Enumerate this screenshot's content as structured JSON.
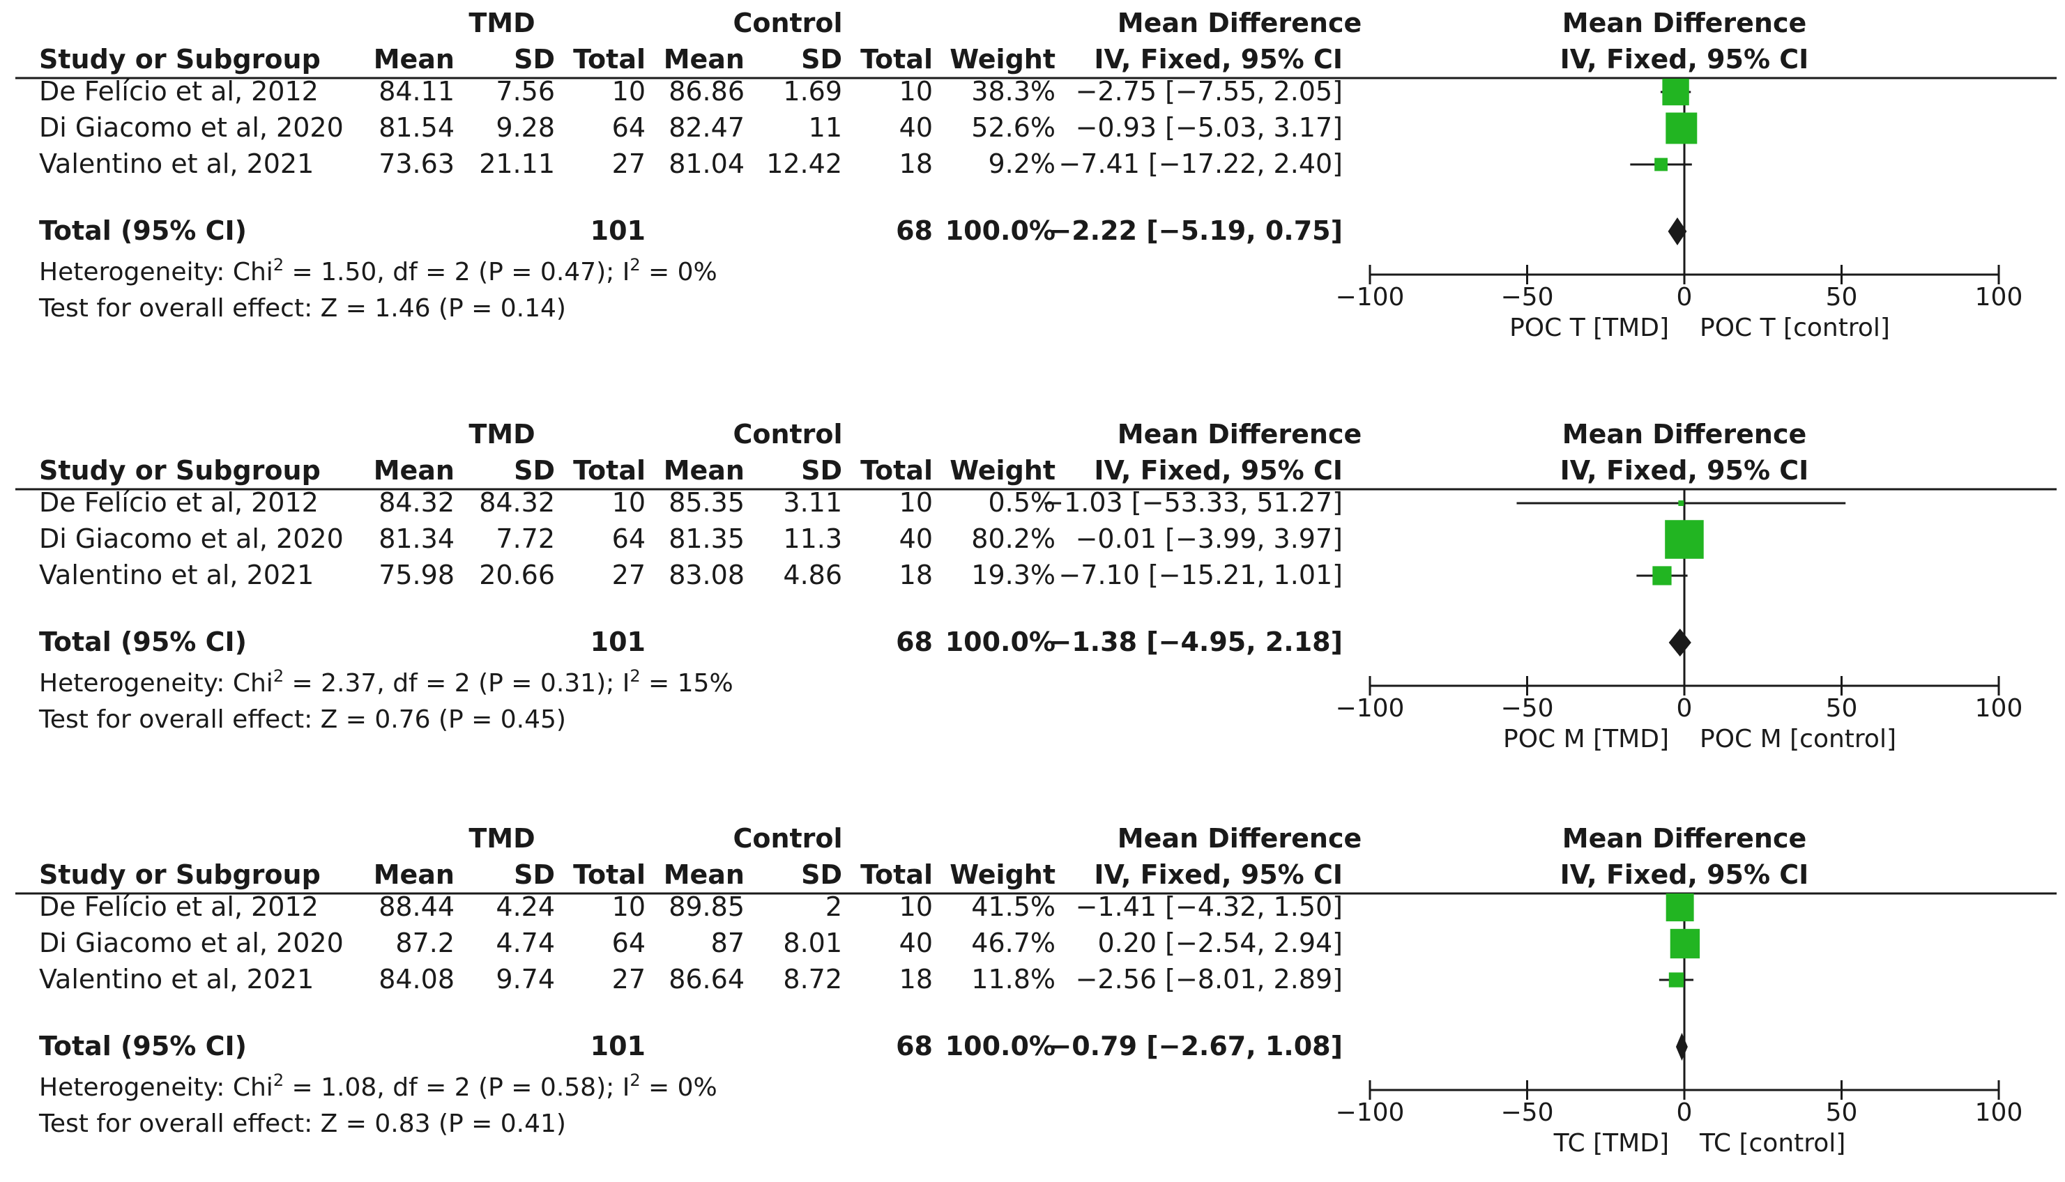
{
  "chart_data": [
    {
      "type": "forest",
      "title": "",
      "headers": {
        "group1": "TMD",
        "group2": "Control",
        "study": "Study or Subgroup",
        "mean": "Mean",
        "sd": "SD",
        "total": "Total",
        "weight": "Weight",
        "md_title": "Mean Difference",
        "md_sub": "IV, Fixed, 95% CI",
        "plot_title": "Mean Difference",
        "plot_sub": "IV, Fixed, 95% CI"
      },
      "studies": [
        {
          "name": "De Felício et al, 2012",
          "mean1": "84.11",
          "sd1": "7.56",
          "n1": "10",
          "mean2": "86.86",
          "sd2": "1.69",
          "n2": "10",
          "weight_label": "38.3%",
          "weight": 38.3,
          "ci_label": "−2.75 [−7.55, 2.05]",
          "md": -2.75,
          "lo": -7.55,
          "hi": 2.05
        },
        {
          "name": "Di Giacomo et al, 2020",
          "mean1": "81.54",
          "sd1": "9.28",
          "n1": "64",
          "mean2": "82.47",
          "sd2": "11",
          "n2": "40",
          "weight_label": "52.6%",
          "weight": 52.6,
          "ci_label": "−0.93 [−5.03, 3.17]",
          "md": -0.93,
          "lo": -5.03,
          "hi": 3.17
        },
        {
          "name": "Valentino et al, 2021",
          "mean1": "73.63",
          "sd1": "21.11",
          "n1": "27",
          "mean2": "81.04",
          "sd2": "12.42",
          "n2": "18",
          "weight_label": "9.2%",
          "weight": 9.2,
          "ci_label": "−7.41 [−17.22, 2.40]",
          "md": -7.41,
          "lo": -17.22,
          "hi": 2.4
        }
      ],
      "total": {
        "label": "Total (95% CI)",
        "n1": "101",
        "n2": "68",
        "weight_label": "100.0%",
        "ci_label": "−2.22 [−5.19, 0.75]",
        "md": -2.22,
        "lo": -5.19,
        "hi": 0.75
      },
      "heterogeneity": {
        "prefix": "Heterogeneity: Chi",
        "sup": "2",
        "middle": " = 1.50, df = 2 (P = 0.47); I",
        "sup2": "2",
        "suffix": " = 0%"
      },
      "overall_effect": "Test for overall effect: Z = 1.46 (P = 0.14)",
      "axis": {
        "ticks": [
          -100,
          -50,
          0,
          50,
          100
        ],
        "tick_labels": [
          "−100",
          "−50",
          "0",
          "50",
          "100"
        ],
        "range": [
          -100,
          100
        ]
      },
      "favours": {
        "left": "POC T [TMD]",
        "right": "POC T [control]"
      }
    },
    {
      "type": "forest",
      "title": "",
      "headers": {
        "group1": "TMD",
        "group2": "Control",
        "study": "Study or Subgroup",
        "mean": "Mean",
        "sd": "SD",
        "total": "Total",
        "weight": "Weight",
        "md_title": "Mean Difference",
        "md_sub": "IV, Fixed, 95% CI",
        "plot_title": "Mean Difference",
        "plot_sub": "IV, Fixed, 95% CI"
      },
      "studies": [
        {
          "name": "De Felício et al, 2012",
          "mean1": "84.32",
          "sd1": "84.32",
          "n1": "10",
          "mean2": "85.35",
          "sd2": "3.11",
          "n2": "10",
          "weight_label": "0.5%",
          "weight": 0.5,
          "ci_label": "−1.03 [−53.33, 51.27]",
          "md": -1.03,
          "lo": -53.33,
          "hi": 51.27
        },
        {
          "name": "Di Giacomo et al, 2020",
          "mean1": "81.34",
          "sd1": "7.72",
          "n1": "64",
          "mean2": "81.35",
          "sd2": "11.3",
          "n2": "40",
          "weight_label": "80.2%",
          "weight": 80.2,
          "ci_label": "−0.01 [−3.99, 3.97]",
          "md": -0.01,
          "lo": -3.99,
          "hi": 3.97
        },
        {
          "name": "Valentino et al, 2021",
          "mean1": "75.98",
          "sd1": "20.66",
          "n1": "27",
          "mean2": "83.08",
          "sd2": "4.86",
          "n2": "18",
          "weight_label": "19.3%",
          "weight": 19.3,
          "ci_label": "−7.10 [−15.21, 1.01]",
          "md": -7.1,
          "lo": -15.21,
          "hi": 1.01
        }
      ],
      "total": {
        "label": "Total (95% CI)",
        "n1": "101",
        "n2": "68",
        "weight_label": "100.0%",
        "ci_label": "−1.38 [−4.95, 2.18]",
        "md": -1.38,
        "lo": -4.95,
        "hi": 2.18
      },
      "heterogeneity": {
        "prefix": "Heterogeneity: Chi",
        "sup": "2",
        "middle": " = 2.37, df = 2 (P = 0.31); I",
        "sup2": "2",
        "suffix": " = 15%"
      },
      "overall_effect": "Test for overall effect: Z = 0.76 (P = 0.45)",
      "axis": {
        "ticks": [
          -100,
          -50,
          0,
          50,
          100
        ],
        "tick_labels": [
          "−100",
          "−50",
          "0",
          "50",
          "100"
        ],
        "range": [
          -100,
          100
        ]
      },
      "favours": {
        "left": "POC M [TMD]",
        "right": "POC M [control]"
      }
    },
    {
      "type": "forest",
      "title": "",
      "headers": {
        "group1": "TMD",
        "group2": "Control",
        "study": "Study or Subgroup",
        "mean": "Mean",
        "sd": "SD",
        "total": "Total",
        "weight": "Weight",
        "md_title": "Mean Difference",
        "md_sub": "IV, Fixed, 95% CI",
        "plot_title": "Mean Difference",
        "plot_sub": "IV, Fixed, 95% CI"
      },
      "studies": [
        {
          "name": "De Felício et al, 2012",
          "mean1": "88.44",
          "sd1": "4.24",
          "n1": "10",
          "mean2": "89.85",
          "sd2": "2",
          "n2": "10",
          "weight_label": "41.5%",
          "weight": 41.5,
          "ci_label": "−1.41 [−4.32, 1.50]",
          "md": -1.41,
          "lo": -4.32,
          "hi": 1.5
        },
        {
          "name": "Di Giacomo et al, 2020",
          "mean1": "87.2",
          "sd1": "4.74",
          "n1": "64",
          "mean2": "87",
          "sd2": "8.01",
          "n2": "40",
          "weight_label": "46.7%",
          "weight": 46.7,
          "ci_label": "0.20 [−2.54, 2.94]",
          "md": 0.2,
          "lo": -2.54,
          "hi": 2.94
        },
        {
          "name": "Valentino et al, 2021",
          "mean1": "84.08",
          "sd1": "9.74",
          "n1": "27",
          "mean2": "86.64",
          "sd2": "8.72",
          "n2": "18",
          "weight_label": "11.8%",
          "weight": 11.8,
          "ci_label": "−2.56 [−8.01, 2.89]",
          "md": -2.56,
          "lo": -8.01,
          "hi": 2.89
        }
      ],
      "total": {
        "label": "Total (95% CI)",
        "n1": "101",
        "n2": "68",
        "weight_label": "100.0%",
        "ci_label": "−0.79 [−2.67, 1.08]",
        "md": -0.79,
        "lo": -2.67,
        "hi": 1.08
      },
      "heterogeneity": {
        "prefix": "Heterogeneity: Chi",
        "sup": "2",
        "middle": " = 1.08, df = 2 (P = 0.58); I",
        "sup2": "2",
        "suffix": " = 0%"
      },
      "overall_effect": "Test for overall effect: Z = 0.83 (P = 0.41)",
      "axis": {
        "ticks": [
          -100,
          -50,
          0,
          50,
          100
        ],
        "tick_labels": [
          "−100",
          "−50",
          "0",
          "50",
          "100"
        ],
        "range": [
          -100,
          100
        ]
      },
      "favours": {
        "left": "TC [TMD]",
        "right": "TC [control]"
      }
    }
  ],
  "colors": {
    "marker": "#22b522",
    "text": "#1a1a1a",
    "line": "#1a1a1a"
  }
}
